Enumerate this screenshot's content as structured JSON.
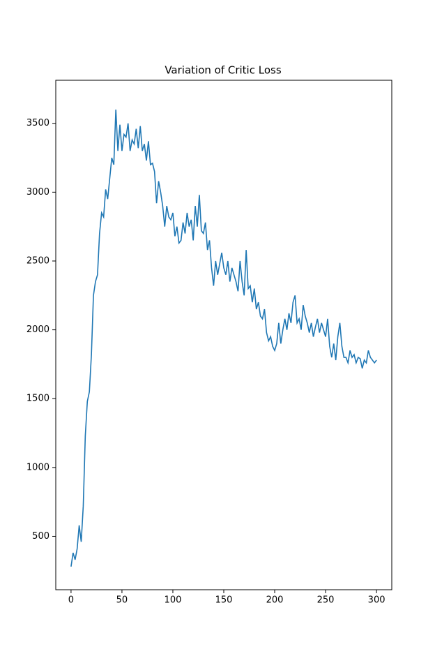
{
  "chart_data": {
    "type": "line",
    "title": "Variation of Critic Loss",
    "x": [
      0,
      2,
      4,
      6,
      8,
      10,
      12,
      14,
      16,
      18,
      20,
      22,
      24,
      26,
      28,
      30,
      32,
      34,
      36,
      38,
      40,
      42,
      44,
      46,
      48,
      50,
      52,
      54,
      56,
      58,
      60,
      62,
      64,
      66,
      68,
      70,
      72,
      74,
      76,
      78,
      80,
      82,
      84,
      86,
      88,
      90,
      92,
      94,
      96,
      98,
      100,
      102,
      104,
      106,
      108,
      110,
      112,
      114,
      116,
      118,
      120,
      122,
      124,
      126,
      128,
      130,
      132,
      134,
      136,
      138,
      140,
      142,
      144,
      146,
      148,
      150,
      152,
      154,
      156,
      158,
      160,
      162,
      164,
      166,
      168,
      170,
      172,
      174,
      176,
      178,
      180,
      182,
      184,
      186,
      188,
      190,
      192,
      194,
      196,
      198,
      200,
      202,
      204,
      206,
      208,
      210,
      212,
      214,
      216,
      218,
      220,
      222,
      224,
      226,
      228,
      230,
      232,
      234,
      236,
      238,
      240,
      242,
      244,
      246,
      248,
      250,
      252,
      254,
      256,
      258,
      260,
      262,
      264,
      266,
      268,
      270,
      272,
      274,
      276,
      278,
      280,
      282,
      284,
      286,
      288,
      290,
      292,
      294,
      296,
      298,
      300
    ],
    "series": [
      {
        "name": "Critic Loss",
        "color": "#1f77b4",
        "values": [
          280,
          380,
          330,
          410,
          580,
          460,
          720,
          1230,
          1480,
          1550,
          1820,
          2250,
          2350,
          2400,
          2700,
          2850,
          2820,
          3020,
          2950,
          3100,
          3250,
          3200,
          3600,
          3300,
          3490,
          3300,
          3420,
          3400,
          3500,
          3300,
          3380,
          3350,
          3460,
          3320,
          3480,
          3300,
          3350,
          3230,
          3370,
          3200,
          3210,
          3150,
          2920,
          3080,
          3000,
          2900,
          2750,
          2900,
          2820,
          2800,
          2850,
          2680,
          2750,
          2630,
          2650,
          2780,
          2700,
          2850,
          2750,
          2800,
          2650,
          2900,
          2750,
          2980,
          2720,
          2700,
          2780,
          2580,
          2650,
          2450,
          2320,
          2500,
          2400,
          2480,
          2560,
          2450,
          2400,
          2500,
          2350,
          2450,
          2400,
          2350,
          2280,
          2500,
          2350,
          2250,
          2580,
          2300,
          2320,
          2200,
          2300,
          2150,
          2200,
          2100,
          2080,
          2150,
          1980,
          1920,
          1950,
          1880,
          1850,
          1900,
          2050,
          1900,
          2000,
          2080,
          2000,
          2120,
          2050,
          2200,
          2250,
          2050,
          2080,
          2000,
          2180,
          2100,
          2050,
          1980,
          2050,
          1950,
          2020,
          2080,
          1980,
          2050,
          2000,
          1950,
          2080,
          1880,
          1800,
          1900,
          1780,
          1950,
          2050,
          1880,
          1800,
          1800,
          1760,
          1850,
          1800,
          1820,
          1760,
          1800,
          1790,
          1720,
          1780,
          1760,
          1850,
          1800,
          1780,
          1760,
          1780
        ]
      }
    ],
    "xlim": [
      -15,
      315
    ],
    "xticks": [
      0,
      50,
      100,
      150,
      200,
      250,
      300
    ],
    "ylim": [
      112,
      3813
    ],
    "yticks": [
      500,
      1000,
      1500,
      2000,
      2500,
      3000,
      3500
    ]
  }
}
